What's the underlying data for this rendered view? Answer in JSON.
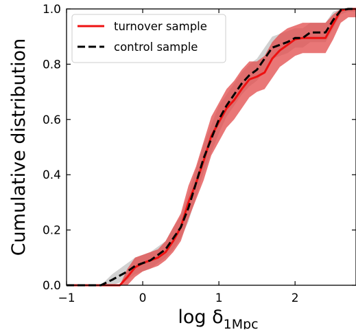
{
  "chart_data": {
    "type": "line",
    "xlabel": "log δ",
    "xlabel_subscript": "1Mpc",
    "ylabel": "Cumulative distribution",
    "xlim": [
      -1.0,
      2.8
    ],
    "ylim": [
      0.0,
      1.0
    ],
    "xticks": [
      -1,
      0,
      1,
      2
    ],
    "xtick_labels": [
      "−1",
      "0",
      "1",
      "2"
    ],
    "yticks": [
      0.0,
      0.2,
      0.4,
      0.6,
      0.8,
      1.0
    ],
    "ytick_labels": [
      "0.0",
      "0.2",
      "0.4",
      "0.6",
      "0.8",
      "1.0"
    ],
    "grid": false,
    "legend_position": "upper-left",
    "series": [
      {
        "name": "turnover sample",
        "color": "#ee1111",
        "band_color": "#e24a4a",
        "line_style": "solid",
        "x": [
          -1.0,
          -0.3,
          -0.2,
          -0.1,
          0.0,
          0.1,
          0.2,
          0.3,
          0.4,
          0.5,
          0.6,
          0.7,
          0.8,
          0.9,
          1.0,
          1.1,
          1.2,
          1.3,
          1.4,
          1.5,
          1.6,
          1.7,
          1.8,
          1.9,
          2.0,
          2.1,
          2.2,
          2.3,
          2.4,
          2.5,
          2.6,
          2.7,
          2.8
        ],
        "y": [
          0.0,
          0.0,
          0.03,
          0.065,
          0.08,
          0.09,
          0.1,
          0.12,
          0.16,
          0.21,
          0.3,
          0.37,
          0.45,
          0.54,
          0.59,
          0.64,
          0.67,
          0.71,
          0.745,
          0.755,
          0.77,
          0.82,
          0.85,
          0.87,
          0.89,
          0.895,
          0.895,
          0.895,
          0.895,
          0.945,
          0.995,
          1.0,
          1.0
        ],
        "lower": [
          0.0,
          0.0,
          0.0,
          0.03,
          0.05,
          0.06,
          0.07,
          0.09,
          0.12,
          0.16,
          0.24,
          0.31,
          0.38,
          0.47,
          0.52,
          0.57,
          0.6,
          0.64,
          0.68,
          0.7,
          0.71,
          0.75,
          0.79,
          0.81,
          0.83,
          0.84,
          0.84,
          0.84,
          0.84,
          0.89,
          0.95,
          0.97,
          0.97
        ],
        "upper": [
          0.0,
          0.0,
          0.06,
          0.1,
          0.11,
          0.12,
          0.13,
          0.16,
          0.21,
          0.26,
          0.36,
          0.43,
          0.52,
          0.61,
          0.66,
          0.71,
          0.74,
          0.78,
          0.81,
          0.81,
          0.83,
          0.88,
          0.91,
          0.93,
          0.94,
          0.95,
          0.95,
          0.95,
          0.95,
          0.98,
          1.0,
          1.0,
          1.0
        ]
      },
      {
        "name": "control sample",
        "color": "#000000",
        "band_color": "#b8b8b8",
        "line_style": "dashed",
        "x": [
          -1.0,
          -0.55,
          -0.4,
          -0.2,
          -0.1,
          0.0,
          0.1,
          0.2,
          0.3,
          0.4,
          0.5,
          0.6,
          0.7,
          0.8,
          0.9,
          1.0,
          1.1,
          1.2,
          1.3,
          1.4,
          1.5,
          1.6,
          1.7,
          1.8,
          1.9,
          2.0,
          2.1,
          2.2,
          2.3,
          2.4,
          2.5,
          2.6,
          2.7,
          2.8
        ],
        "y": [
          0.0,
          0.0,
          0.02,
          0.05,
          0.07,
          0.08,
          0.09,
          0.11,
          0.13,
          0.17,
          0.21,
          0.28,
          0.37,
          0.46,
          0.53,
          0.6,
          0.65,
          0.69,
          0.73,
          0.76,
          0.78,
          0.82,
          0.86,
          0.87,
          0.88,
          0.895,
          0.895,
          0.915,
          0.915,
          0.915,
          0.96,
          0.995,
          1.0,
          1.0
        ],
        "lower": [
          0.0,
          0.0,
          0.0,
          0.02,
          0.04,
          0.05,
          0.06,
          0.08,
          0.1,
          0.13,
          0.17,
          0.23,
          0.32,
          0.41,
          0.48,
          0.55,
          0.61,
          0.65,
          0.69,
          0.72,
          0.74,
          0.78,
          0.82,
          0.83,
          0.84,
          0.86,
          0.86,
          0.88,
          0.88,
          0.88,
          0.93,
          0.98,
          0.99,
          0.99
        ],
        "upper": [
          0.0,
          0.0,
          0.04,
          0.08,
          0.1,
          0.11,
          0.12,
          0.14,
          0.16,
          0.21,
          0.25,
          0.33,
          0.42,
          0.51,
          0.58,
          0.65,
          0.69,
          0.73,
          0.77,
          0.8,
          0.82,
          0.86,
          0.9,
          0.91,
          0.92,
          0.93,
          0.93,
          0.95,
          0.95,
          0.95,
          0.99,
          1.0,
          1.0,
          1.0
        ]
      }
    ]
  }
}
